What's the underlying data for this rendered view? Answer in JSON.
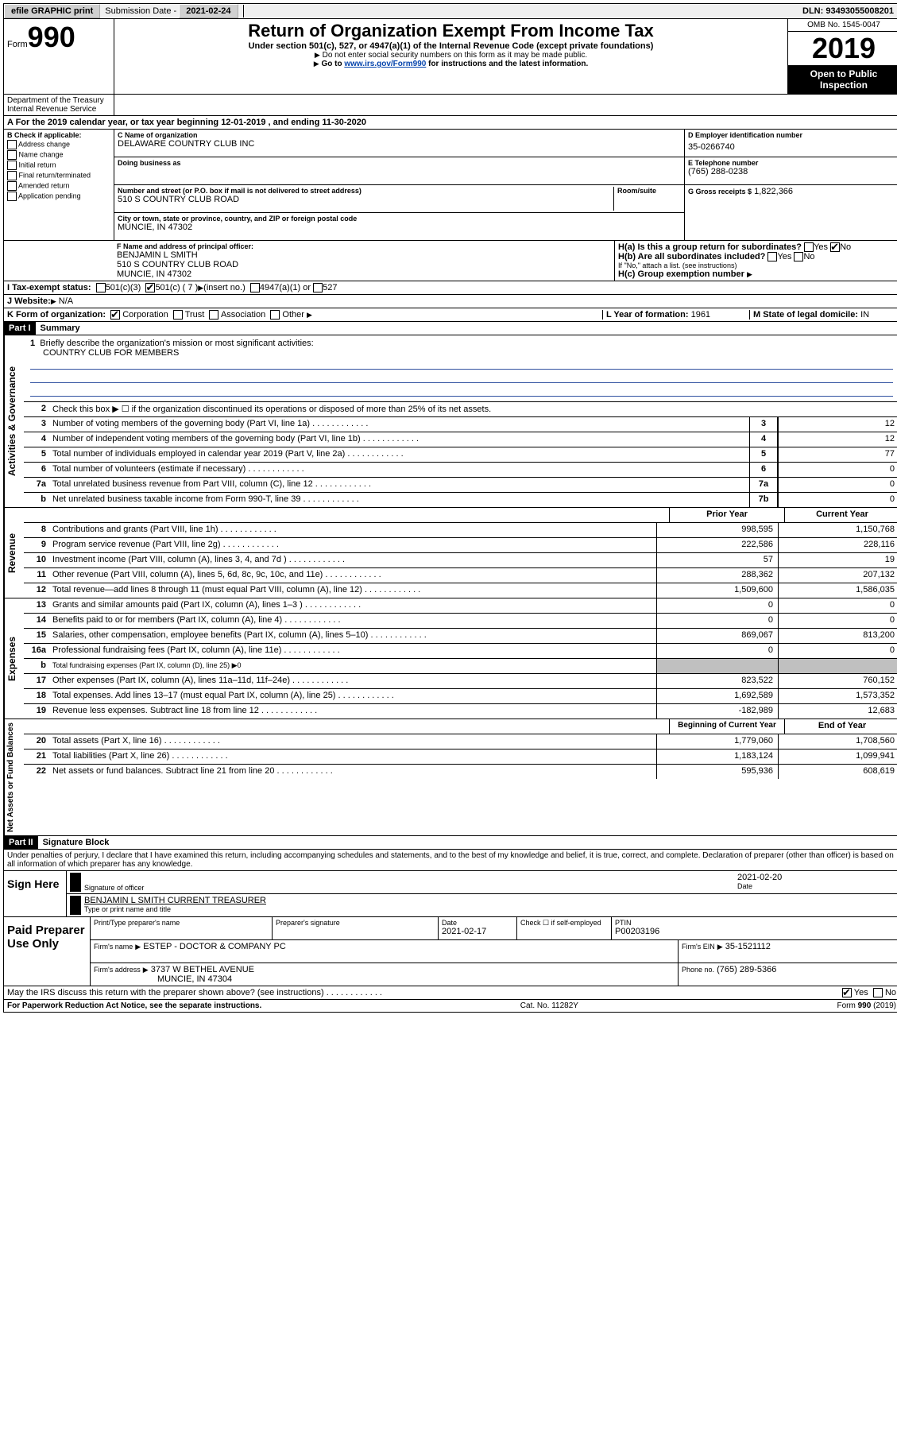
{
  "top_bar": {
    "efile": "efile GRAPHIC print",
    "submission_label": "Submission Date",
    "submission_date": "2021-02-24",
    "dln_label": "DLN:",
    "dln": "93493055008201"
  },
  "header": {
    "form_label": "Form",
    "form_number": "990",
    "dept": "Department of the Treasury\nInternal Revenue Service",
    "title": "Return of Organization Exempt From Income Tax",
    "subtitle": "Under section 501(c), 527, or 4947(a)(1) of the Internal Revenue Code (except private foundations)",
    "note1": "Do not enter social security numbers on this form as it may be made public.",
    "note2_prefix": "Go to ",
    "note2_link": "www.irs.gov/Form990",
    "note2_suffix": " for instructions and the latest information.",
    "omb": "OMB No. 1545-0047",
    "year": "2019",
    "open_public": "Open to Public Inspection"
  },
  "section_a": "A For the 2019 calendar year, or tax year beginning 12-01-2019   , and ending 11-30-2020",
  "col_b": {
    "header": "B Check if applicable:",
    "items": [
      "Address change",
      "Name change",
      "Initial return",
      "Final return/terminated",
      "Amended return",
      "Application pending"
    ]
  },
  "col_c": {
    "name_label": "C Name of organization",
    "name": "DELAWARE COUNTRY CLUB INC",
    "dba_label": "Doing business as",
    "street_label": "Number and street (or P.O. box if mail is not delivered to street address)",
    "room_label": "Room/suite",
    "street": "510 S COUNTRY CLUB ROAD",
    "city_label": "City or town, state or province, country, and ZIP or foreign postal code",
    "city": "MUNCIE, IN  47302"
  },
  "col_d": {
    "ein_label": "D Employer identification number",
    "ein": "35-0266740",
    "phone_label": "E Telephone number",
    "phone": "(765) 288-0238",
    "gross_label": "G Gross receipts $",
    "gross": "1,822,366"
  },
  "section_f": {
    "label": "F Name and address of principal officer:",
    "name": "BENJAMIN L SMITH",
    "addr1": "510 S COUNTRY CLUB ROAD",
    "addr2": "MUNCIE, IN  47302"
  },
  "section_h": {
    "ha_label": "H(a)  Is this a group return for subordinates?",
    "hb_label": "H(b)  Are all subordinates included?",
    "hb_note": "If \"No,\" attach a list. (see instructions)",
    "hc_label": "H(c)  Group exemption number",
    "yes": "Yes",
    "no": "No"
  },
  "section_i": {
    "label": "I  Tax-exempt status:",
    "opt1": "501(c)(3)",
    "opt2": "501(c) ( 7 )",
    "opt2_note": "(insert no.)",
    "opt3": "4947(a)(1) or",
    "opt4": "527"
  },
  "section_j": {
    "label": "J  Website:",
    "value": "N/A"
  },
  "section_k": {
    "label": "K Form of organization:",
    "opts": [
      "Corporation",
      "Trust",
      "Association",
      "Other"
    ]
  },
  "section_l": {
    "label": "L Year of formation:",
    "value": "1961"
  },
  "section_m": {
    "label": "M State of legal domicile:",
    "value": "IN"
  },
  "part1": {
    "header": "Part I",
    "title": "Summary",
    "q1": "Briefly describe the organization's mission or most significant activities:",
    "mission": "COUNTRY CLUB FOR MEMBERS",
    "q2": "Check this box ▶ ☐  if the organization discontinued its operations or disposed of more than 25% of its net assets.",
    "lines_gov": [
      {
        "n": "3",
        "t": "Number of voting members of the governing body (Part VI, line 1a)",
        "box": "3",
        "v": "12"
      },
      {
        "n": "4",
        "t": "Number of independent voting members of the governing body (Part VI, line 1b)",
        "box": "4",
        "v": "12"
      },
      {
        "n": "5",
        "t": "Total number of individuals employed in calendar year 2019 (Part V, line 2a)",
        "box": "5",
        "v": "77"
      },
      {
        "n": "6",
        "t": "Total number of volunteers (estimate if necessary)",
        "box": "6",
        "v": "0"
      },
      {
        "n": "7a",
        "t": "Total unrelated business revenue from Part VIII, column (C), line 12",
        "box": "7a",
        "v": "0"
      },
      {
        "n": "b",
        "t": "Net unrelated business taxable income from Form 990-T, line 39",
        "box": "7b",
        "v": "0"
      }
    ],
    "col_prior": "Prior Year",
    "col_current": "Current Year",
    "lines_rev": [
      {
        "n": "8",
        "t": "Contributions and grants (Part VIII, line 1h)",
        "p": "998,595",
        "c": "1,150,768"
      },
      {
        "n": "9",
        "t": "Program service revenue (Part VIII, line 2g)",
        "p": "222,586",
        "c": "228,116"
      },
      {
        "n": "10",
        "t": "Investment income (Part VIII, column (A), lines 3, 4, and 7d )",
        "p": "57",
        "c": "19"
      },
      {
        "n": "11",
        "t": "Other revenue (Part VIII, column (A), lines 5, 6d, 8c, 9c, 10c, and 11e)",
        "p": "288,362",
        "c": "207,132"
      },
      {
        "n": "12",
        "t": "Total revenue—add lines 8 through 11 (must equal Part VIII, column (A), line 12)",
        "p": "1,509,600",
        "c": "1,586,035"
      }
    ],
    "lines_exp": [
      {
        "n": "13",
        "t": "Grants and similar amounts paid (Part IX, column (A), lines 1–3 )",
        "p": "0",
        "c": "0"
      },
      {
        "n": "14",
        "t": "Benefits paid to or for members (Part IX, column (A), line 4)",
        "p": "0",
        "c": "0"
      },
      {
        "n": "15",
        "t": "Salaries, other compensation, employee benefits (Part IX, column (A), lines 5–10)",
        "p": "869,067",
        "c": "813,200"
      },
      {
        "n": "16a",
        "t": "Professional fundraising fees (Part IX, column (A), line 11e)",
        "p": "0",
        "c": "0"
      },
      {
        "n": "b",
        "t": "Total fundraising expenses (Part IX, column (D), line 25) ▶0",
        "shaded": true
      },
      {
        "n": "17",
        "t": "Other expenses (Part IX, column (A), lines 11a–11d, 11f–24e)",
        "p": "823,522",
        "c": "760,152"
      },
      {
        "n": "18",
        "t": "Total expenses. Add lines 13–17 (must equal Part IX, column (A), line 25)",
        "p": "1,692,589",
        "c": "1,573,352"
      },
      {
        "n": "19",
        "t": "Revenue less expenses. Subtract line 18 from line 12",
        "p": "-182,989",
        "c": "12,683"
      }
    ],
    "col_begin": "Beginning of Current Year",
    "col_end": "End of Year",
    "lines_net": [
      {
        "n": "20",
        "t": "Total assets (Part X, line 16)",
        "p": "1,779,060",
        "c": "1,708,560"
      },
      {
        "n": "21",
        "t": "Total liabilities (Part X, line 26)",
        "p": "1,183,124",
        "c": "1,099,941"
      },
      {
        "n": "22",
        "t": "Net assets or fund balances. Subtract line 21 from line 20",
        "p": "595,936",
        "c": "608,619"
      }
    ],
    "vlabels": {
      "gov": "Activities & Governance",
      "rev": "Revenue",
      "exp": "Expenses",
      "net": "Net Assets or Fund Balances"
    }
  },
  "part2": {
    "header": "Part II",
    "title": "Signature Block",
    "declaration": "Under penalties of perjury, I declare that I have examined this return, including accompanying schedules and statements, and to the best of my knowledge and belief, it is true, correct, and complete. Declaration of preparer (other than officer) is based on all information of which preparer has any knowledge."
  },
  "sign": {
    "label": "Sign Here",
    "sig_label": "Signature of officer",
    "date_label": "Date",
    "date": "2021-02-20",
    "name": "BENJAMIN L SMITH  CURRENT TREASURER",
    "type_label": "Type or print name and title"
  },
  "preparer": {
    "label": "Paid Preparer Use Only",
    "name_label": "Print/Type preparer's name",
    "sig_label": "Preparer's signature",
    "date_label": "Date",
    "date": "2021-02-17",
    "check_label": "Check ☐ if self-employed",
    "ptin_label": "PTIN",
    "ptin": "P00203196",
    "firm_name_label": "Firm's name",
    "firm_name": "ESTEP - DOCTOR & COMPANY PC",
    "firm_ein_label": "Firm's EIN",
    "firm_ein": "35-1521112",
    "firm_addr_label": "Firm's address",
    "firm_addr1": "3737 W BETHEL AVENUE",
    "firm_addr2": "MUNCIE, IN  47304",
    "phone_label": "Phone no.",
    "phone": "(765) 289-5366"
  },
  "discuss": {
    "text": "May the IRS discuss this return with the preparer shown above? (see instructions)",
    "yes": "Yes",
    "no": "No"
  },
  "footer": {
    "left": "For Paperwork Reduction Act Notice, see the separate instructions.",
    "mid": "Cat. No. 11282Y",
    "right": "Form 990 (2019)"
  }
}
